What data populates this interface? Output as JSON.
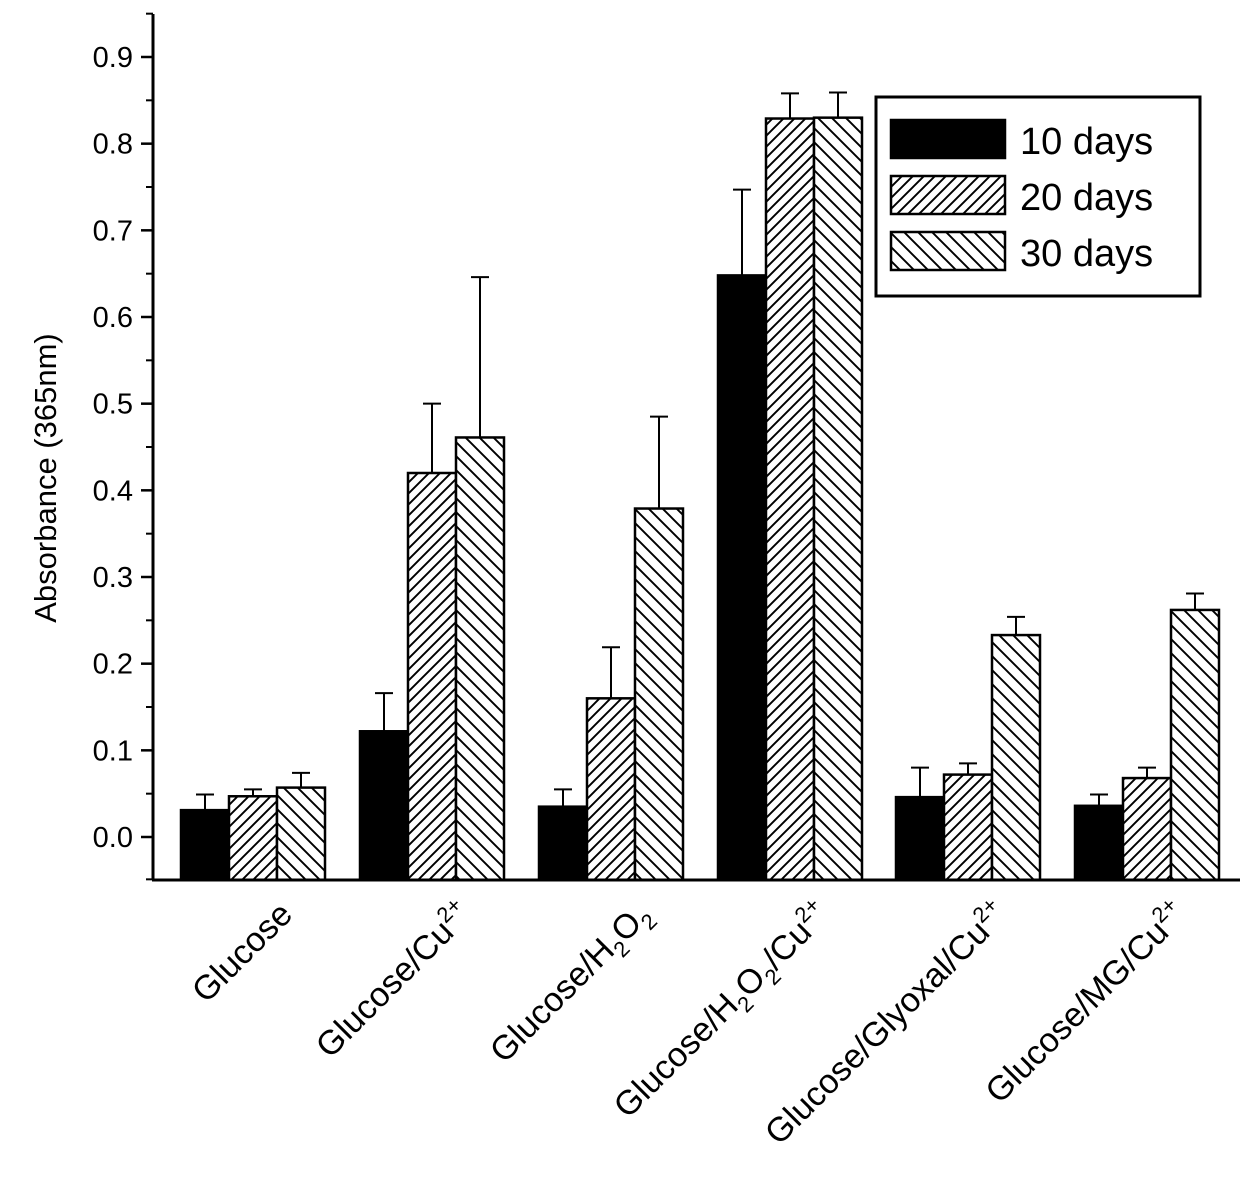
{
  "chart_data": {
    "type": "bar",
    "title": "",
    "xlabel": "",
    "ylabel": "Absorbance (365nm)",
    "ylim": [
      -0.05,
      0.95
    ],
    "yticks": [
      "0.0",
      "0.1",
      "0.2",
      "0.3",
      "0.4",
      "0.5",
      "0.6",
      "0.7",
      "0.8",
      "0.9"
    ],
    "legend_position": "top-right",
    "categories": [
      {
        "id": "glucose",
        "parts": [
          {
            "t": "Glucose"
          }
        ]
      },
      {
        "id": "glucose-cu",
        "parts": [
          {
            "t": "Glucose/Cu"
          },
          {
            "t": "2+",
            "s": "sup"
          }
        ]
      },
      {
        "id": "glucose-h2o2",
        "parts": [
          {
            "t": "Glucose/H"
          },
          {
            "t": "2",
            "s": "sub"
          },
          {
            "t": "O"
          },
          {
            "t": "2",
            "s": "sub"
          }
        ]
      },
      {
        "id": "glucose-h2o2-cu",
        "parts": [
          {
            "t": "Glucose/H"
          },
          {
            "t": "2",
            "s": "sub"
          },
          {
            "t": "O"
          },
          {
            "t": "2",
            "s": "sub"
          },
          {
            "t": "/Cu"
          },
          {
            "t": "2+",
            "s": "sup"
          }
        ]
      },
      {
        "id": "glucose-glyoxal-cu",
        "parts": [
          {
            "t": "Glucose/Glyoxal/Cu"
          },
          {
            "t": "2+",
            "s": "sup"
          }
        ]
      },
      {
        "id": "glucose-mg-cu",
        "parts": [
          {
            "t": "Glucose/MG/Cu"
          },
          {
            "t": "2+",
            "s": "sup"
          }
        ]
      }
    ],
    "series": [
      {
        "name": "10 days",
        "pattern": "solid",
        "values": [
          0.031,
          0.122,
          0.035,
          0.648,
          0.046,
          0.036
        ],
        "errors": [
          0.018,
          0.044,
          0.02,
          0.099,
          0.034,
          0.013
        ]
      },
      {
        "name": "20 days",
        "pattern": "hatch-forward",
        "values": [
          0.047,
          0.42,
          0.16,
          0.829,
          0.072,
          0.068
        ],
        "errors": [
          0.008,
          0.08,
          0.059,
          0.029,
          0.013,
          0.012
        ]
      },
      {
        "name": "30 days",
        "pattern": "hatch-back",
        "values": [
          0.057,
          0.461,
          0.379,
          0.83,
          0.233,
          0.262
        ],
        "errors": [
          0.017,
          0.185,
          0.106,
          0.029,
          0.021,
          0.019
        ]
      }
    ]
  }
}
